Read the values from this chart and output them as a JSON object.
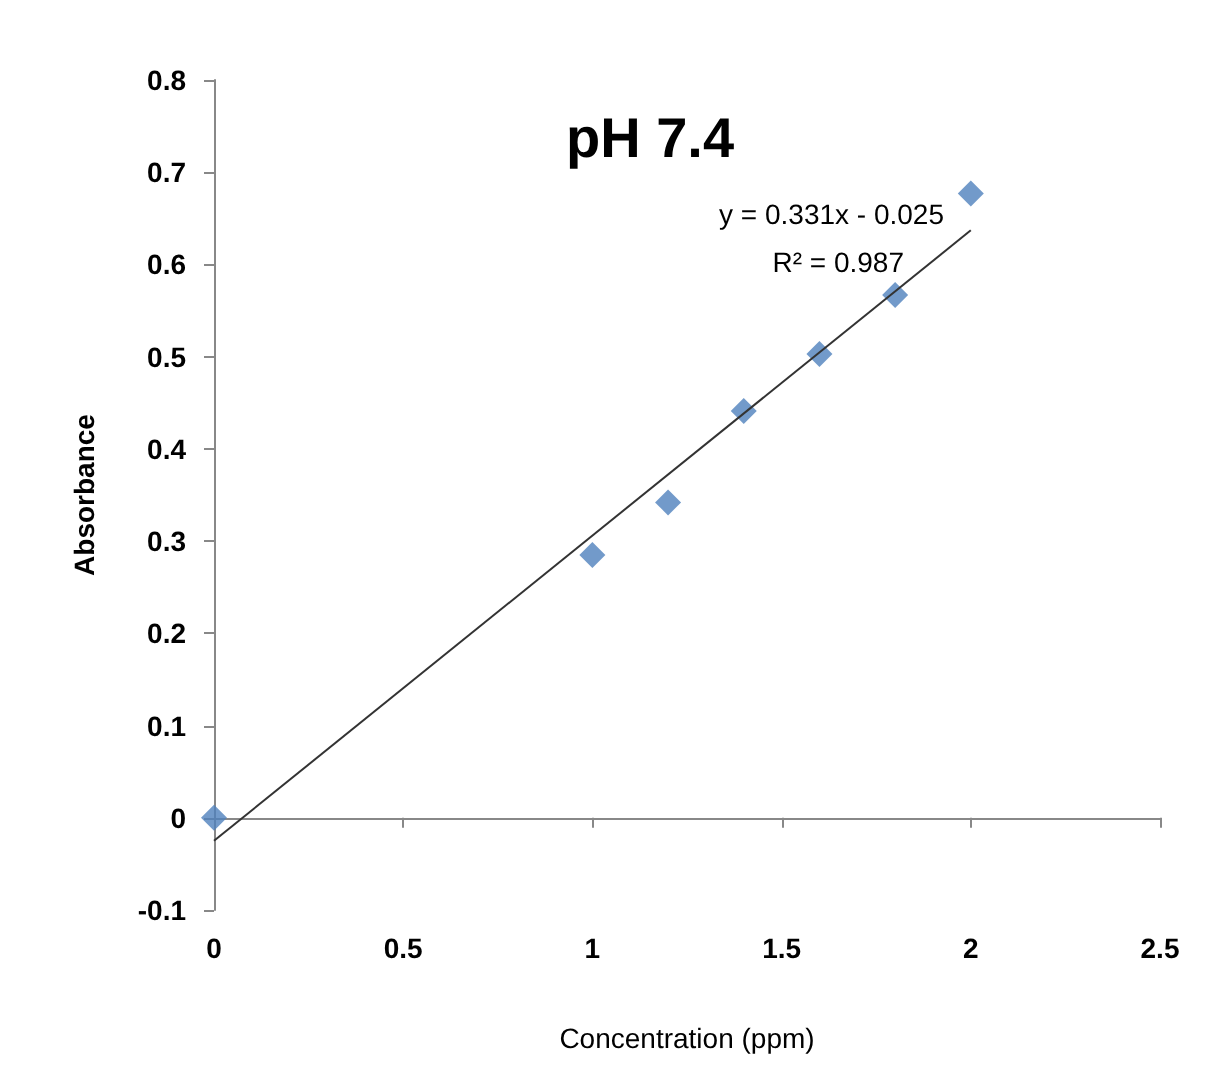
{
  "chart_data": {
    "type": "scatter",
    "title": "pH 7.4",
    "xlabel": "Concentration (ppm)",
    "ylabel": "Absorbance",
    "x": [
      0,
      1,
      1.2,
      1.4,
      1.6,
      1.8,
      2
    ],
    "series": [
      {
        "color": "#4f81bd",
        "values": [
          0,
          0.285,
          0.342,
          0.441,
          0.503,
          0.567,
          0.677
        ]
      },
      {
        "type": "line",
        "color": "#333333",
        "x": [
          0,
          2
        ],
        "values": [
          -0.025,
          0.637
        ],
        "marker": "none"
      }
    ],
    "annotations": [
      "y = 0.331x - 0.025",
      "R² = 0.987"
    ],
    "xlim": [
      0,
      2.5
    ],
    "xticks": [
      0,
      0.5,
      1,
      1.5,
      2,
      2.5
    ],
    "ylim": [
      -0.1,
      0.8
    ],
    "yticks": [
      -0.1,
      0,
      0.1,
      0.2,
      0.3,
      0.4,
      0.5,
      0.6,
      0.7,
      0.8
    ],
    "marker": "diamond"
  }
}
